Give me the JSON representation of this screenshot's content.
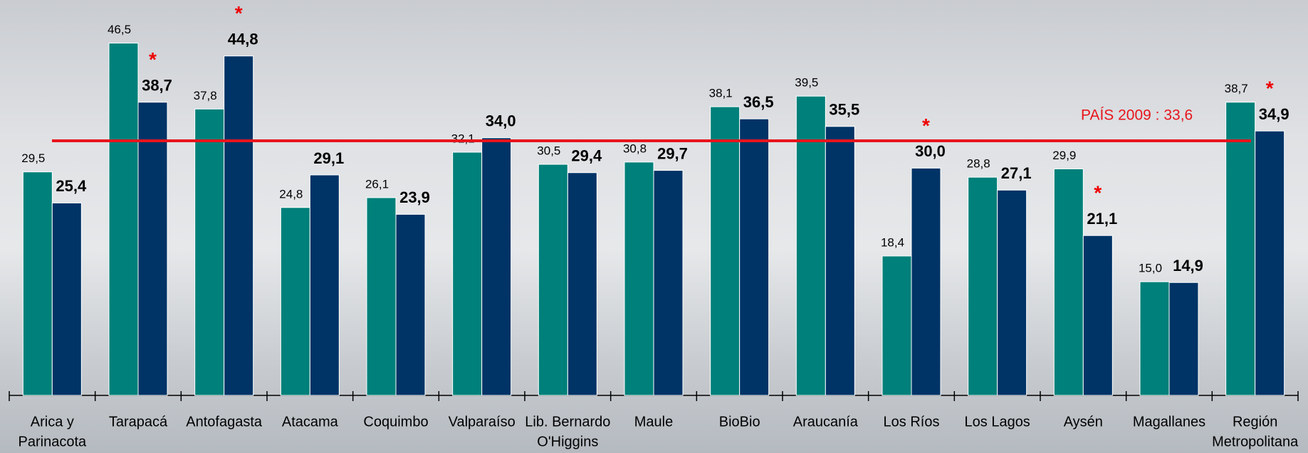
{
  "chart_data": {
    "type": "bar",
    "categories": [
      [
        "Arica y",
        "Parinacota"
      ],
      [
        "Tarapacá"
      ],
      [
        "Antofagasta"
      ],
      [
        "Atacama"
      ],
      [
        "Coquimbo"
      ],
      [
        "Valparaíso"
      ],
      [
        "Lib. Bernardo",
        "O'Higgins"
      ],
      [
        "Maule"
      ],
      [
        "BioBio"
      ],
      [
        "Araucanía"
      ],
      [
        "Los Ríos"
      ],
      [
        "Los Lagos"
      ],
      [
        "Aysén"
      ],
      [
        "Magallanes"
      ],
      [
        "Región",
        "Metropolitana"
      ]
    ],
    "series": [
      {
        "color": "#00807a",
        "values": [
          29.5,
          46.5,
          37.8,
          24.8,
          26.1,
          32.1,
          30.5,
          30.8,
          38.1,
          39.5,
          18.4,
          28.8,
          29.9,
          15.0,
          38.7
        ],
        "value_labels": [
          "29,5",
          "46,5",
          "37,8",
          "24,8",
          "26,1",
          "32,1",
          "30,5",
          "30,8",
          "38,1",
          "39,5",
          "18,4",
          "28,8",
          "29,9",
          "15,0",
          "38,7"
        ]
      },
      {
        "color": "#003366",
        "values": [
          25.4,
          38.7,
          44.8,
          29.1,
          23.9,
          34.0,
          29.4,
          29.7,
          36.5,
          35.5,
          30.0,
          27.1,
          21.1,
          14.9,
          34.9
        ],
        "value_labels": [
          "25,4",
          "38,7",
          "44,8",
          "29,1",
          "23,9",
          "34,0",
          "29,4",
          "29,7",
          "36,5",
          "35,5",
          "30,0",
          "27,1",
          "21,1",
          "14,9",
          "34,9"
        ],
        "flags": [
          null,
          "*",
          "*",
          null,
          null,
          null,
          null,
          null,
          null,
          null,
          "*",
          null,
          "*",
          null,
          "*"
        ]
      }
    ],
    "ylim": [
      0,
      52
    ],
    "reference_line": {
      "value": 33.6,
      "label": "PAÍS 2009 : 33,6",
      "color": "#e8141b"
    }
  }
}
